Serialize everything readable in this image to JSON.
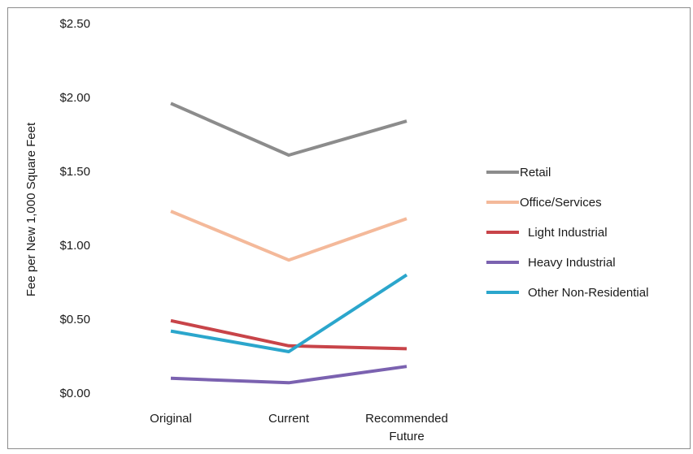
{
  "chart_data": {
    "type": "line",
    "title": "",
    "xlabel": "",
    "ylabel": "Fee per New 1,000 Square Feet",
    "categories": [
      "Original",
      "Current",
      "Recommended Future"
    ],
    "category_lines": [
      [
        "Original"
      ],
      [
        "Current"
      ],
      [
        "Recommended",
        "Future"
      ]
    ],
    "ylim": [
      0,
      2.5
    ],
    "yticks": [
      0,
      0.5,
      1.0,
      1.5,
      2.0,
      2.5
    ],
    "ytick_labels": [
      "$0.00",
      "$0.50",
      "$1.00",
      "$1.50",
      "$2.00",
      "$2.50"
    ],
    "grid": false,
    "legend_position": "right",
    "series": [
      {
        "name": "Retail",
        "color": "#8c8c8c",
        "values": [
          1.96,
          1.61,
          1.84
        ]
      },
      {
        "name": "Office/Services",
        "color": "#f4b99a",
        "values": [
          1.23,
          0.9,
          1.18
        ]
      },
      {
        "name": "Light Industrial",
        "color": "#c84449",
        "values": [
          0.49,
          0.32,
          0.3
        ]
      },
      {
        "name": "Heavy Industrial",
        "color": "#7b62b0",
        "values": [
          0.1,
          0.07,
          0.18
        ]
      },
      {
        "name": "Other Non-Residential",
        "color": "#2ba6cc",
        "values": [
          0.42,
          0.28,
          0.8
        ]
      }
    ]
  }
}
